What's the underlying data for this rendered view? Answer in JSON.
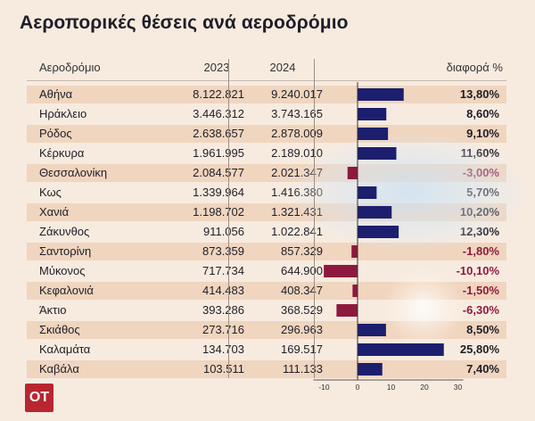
{
  "title": "Αεροπορικές θέσεις ανά αεροδρόμιο",
  "headers": {
    "airport": "Αεροδρόμιο",
    "y2023": "2023",
    "y2024": "2024",
    "diff": "διαφορά %"
  },
  "logo": "OT",
  "colors": {
    "positive": "#1c1f6e",
    "negative": "#8d1a3e",
    "row_shade": "#f0d5bf",
    "background": "#f7ebe0",
    "logo_bg": "#b82630"
  },
  "chart_data": {
    "type": "table",
    "columns": [
      "Αεροδρόμιο",
      "2023",
      "2024",
      "διαφορά %"
    ],
    "rows": [
      {
        "airport": "Αθήνα",
        "y2023": "8.122.821",
        "y2024": "9.240.017",
        "diff_label": "13,80%",
        "diff": 13.8
      },
      {
        "airport": "Ηράκλειο",
        "y2023": "3.446.312",
        "y2024": "3.743.165",
        "diff_label": "8,60%",
        "diff": 8.6
      },
      {
        "airport": "Ρόδος",
        "y2023": "2.638.657",
        "y2024": "2.878.009",
        "diff_label": "9,10%",
        "diff": 9.1
      },
      {
        "airport": "Κέρκυρα",
        "y2023": "1.961.995",
        "y2024": "2.189.010",
        "diff_label": "11,60%",
        "diff": 11.6
      },
      {
        "airport": "Θεσσαλονίκη",
        "y2023": "2.084.577",
        "y2024": "2.021.347",
        "diff_label": "-3,00%",
        "diff": -3.0
      },
      {
        "airport": "Κως",
        "y2023": "1.339.964",
        "y2024": "1.416.380",
        "diff_label": "5,70%",
        "diff": 5.7
      },
      {
        "airport": "Χανιά",
        "y2023": "1.198.702",
        "y2024": "1.321.431",
        "diff_label": "10,20%",
        "diff": 10.2
      },
      {
        "airport": "Ζάκυνθος",
        "y2023": "911.056",
        "y2024": "1.022.841",
        "diff_label": "12,30%",
        "diff": 12.3
      },
      {
        "airport": "Σαντορίνη",
        "y2023": "873.359",
        "y2024": "857.329",
        "diff_label": "-1,80%",
        "diff": -1.8
      },
      {
        "airport": "Μύκονος",
        "y2023": "717.734",
        "y2024": "644.900",
        "diff_label": "-10,10%",
        "diff": -10.1
      },
      {
        "airport": "Κεφαλονιά",
        "y2023": "414.483",
        "y2024": "408.347",
        "diff_label": "-1,50%",
        "diff": -1.5
      },
      {
        "airport": "Άκτιο",
        "y2023": "393.286",
        "y2024": "368.529",
        "diff_label": "-6,30%",
        "diff": -6.3
      },
      {
        "airport": "Σκιάθος",
        "y2023": "273.716",
        "y2024": "296.963",
        "diff_label": "8,50%",
        "diff": 8.5
      },
      {
        "airport": "Καλαμάτα",
        "y2023": "134.703",
        "y2024": "169.517",
        "diff_label": "25,80%",
        "diff": 25.8
      },
      {
        "airport": "Καβάλα",
        "y2023": "103.511",
        "y2024": "111.133",
        "diff_label": "7,40%",
        "diff": 7.4
      }
    ],
    "bar_axis": {
      "xlim": [
        -10,
        30
      ],
      "ticks": [
        -10,
        0,
        10,
        20,
        30
      ]
    },
    "grid": false
  }
}
